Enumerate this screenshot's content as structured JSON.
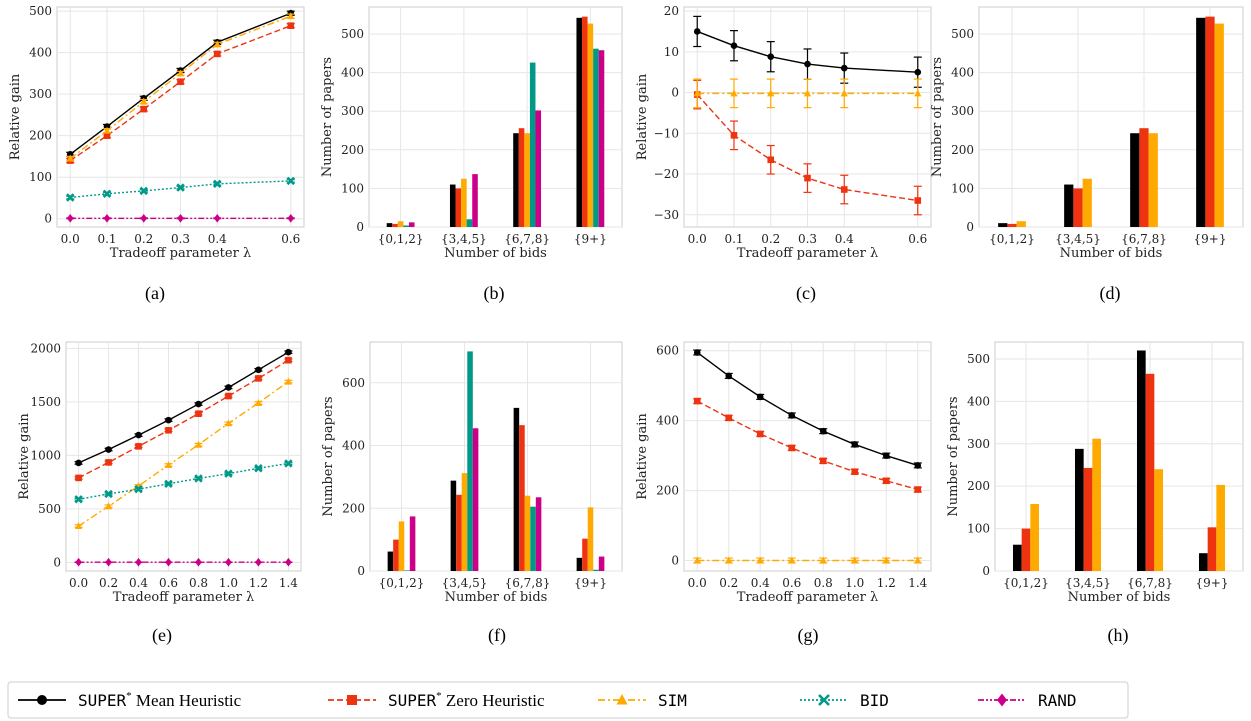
{
  "colors": {
    "SUPER* Mean Heuristic": "#000000",
    "SUPER* Zero Heuristic": "#ee3311",
    "SIM": "#ffaa00",
    "BID": "#009988",
    "RAND": "#cc0088"
  },
  "legend": [
    {
      "prefix": "SUPER",
      "sup": "*",
      "suffix": " Mean Heuristic",
      "series": "SUPER* Mean Heuristic",
      "style": "solid",
      "marker": "circle"
    },
    {
      "prefix": "SUPER",
      "sup": "*",
      "suffix": " Zero Heuristic",
      "series": "SUPER* Zero Heuristic",
      "style": "dashed",
      "marker": "square"
    },
    {
      "prefix": "SIM",
      "sup": "",
      "suffix": "",
      "series": "SIM",
      "style": "dashdot",
      "marker": "triangle"
    },
    {
      "prefix": "BID",
      "sup": "",
      "suffix": "",
      "series": "BID",
      "style": "dotted",
      "marker": "x"
    },
    {
      "prefix": "RAND",
      "sup": "",
      "suffix": "",
      "series": "RAND",
      "style": "dashdotdot",
      "marker": "diamond"
    }
  ],
  "chart_data": [
    {
      "panel": "(a)",
      "type": "line",
      "xlabel": "Tradeoff parameter λ",
      "ylabel": "Relative gain",
      "x": [
        0.0,
        0.1,
        0.2,
        0.3,
        0.4,
        0.6
      ],
      "xticks": [
        "0.0",
        "0.1",
        "0.2",
        "0.3",
        "0.4",
        "0.6"
      ],
      "ylim": [
        -20,
        510
      ],
      "yticks": [
        0,
        100,
        200,
        300,
        400,
        500
      ],
      "series": [
        {
          "name": "SUPER* Mean Heuristic",
          "values": [
            155,
            222,
            290,
            357,
            425,
            495
          ],
          "err": [
            5,
            5,
            5,
            5,
            5,
            5
          ]
        },
        {
          "name": "SUPER* Zero Heuristic",
          "values": [
            140,
            200,
            264,
            330,
            397,
            465
          ],
          "err": [
            5,
            5,
            5,
            5,
            5,
            5
          ]
        },
        {
          "name": "SIM",
          "values": [
            145,
            212,
            282,
            350,
            420,
            488
          ],
          "err": [
            5,
            5,
            5,
            5,
            5,
            5
          ]
        },
        {
          "name": "BID",
          "values": [
            51,
            60,
            67,
            75,
            84,
            91
          ],
          "err": [
            3,
            3,
            3,
            3,
            3,
            3
          ]
        },
        {
          "name": "RAND",
          "values": [
            1,
            1,
            1,
            1,
            1,
            1
          ],
          "err": [
            1,
            1,
            1,
            1,
            1,
            1
          ]
        }
      ]
    },
    {
      "panel": "(b)",
      "type": "bar",
      "xlabel": "Number of bids",
      "ylabel": "Number of papers",
      "categories": [
        "{0,1,2}",
        "{3,4,5}",
        "{6,7,8}",
        "{9+}"
      ],
      "ylim": [
        0,
        570
      ],
      "yticks": [
        0,
        100,
        200,
        300,
        400,
        500
      ],
      "series": [
        {
          "name": "SUPER* Mean Heuristic",
          "values": [
            10,
            110,
            243,
            542
          ]
        },
        {
          "name": "SUPER* Zero Heuristic",
          "values": [
            8,
            100,
            256,
            545
          ]
        },
        {
          "name": "SIM",
          "values": [
            15,
            125,
            243,
            527
          ]
        },
        {
          "name": "BID",
          "values": [
            4,
            20,
            426,
            462
          ]
        },
        {
          "name": "RAND",
          "values": [
            12,
            137,
            302,
            458
          ]
        }
      ]
    },
    {
      "panel": "(c)",
      "type": "line",
      "xlabel": "Tradeoff parameter λ",
      "ylabel": "Relative gain",
      "x": [
        0.0,
        0.1,
        0.2,
        0.3,
        0.4,
        0.6
      ],
      "xticks": [
        "0.0",
        "0.1",
        "0.2",
        "0.3",
        "0.4",
        "0.6"
      ],
      "ylim": [
        -33,
        21
      ],
      "yticks": [
        -30,
        -20,
        -10,
        0,
        10,
        20
      ],
      "series": [
        {
          "name": "SUPER* Mean Heuristic",
          "values": [
            15,
            11.5,
            8.8,
            7,
            6,
            5
          ],
          "err": [
            3.7,
            3.7,
            3.7,
            3.7,
            3.7,
            3.7
          ]
        },
        {
          "name": "SUPER* Zero Heuristic",
          "values": [
            -0.5,
            -10.5,
            -16.5,
            -21,
            -23.8,
            -26.5
          ],
          "err": [
            3.5,
            3.5,
            3.5,
            3.5,
            3.5,
            3.5
          ]
        },
        {
          "name": "SIM",
          "values": [
            -0.2,
            -0.2,
            -0.2,
            -0.2,
            -0.2,
            -0.2
          ],
          "err": [
            3.5,
            3.5,
            3.5,
            3.5,
            3.5,
            3.5
          ]
        }
      ]
    },
    {
      "panel": "(d)",
      "type": "bar",
      "xlabel": "Number of bids",
      "ylabel": "Number of papers",
      "categories": [
        "{0,1,2}",
        "{3,4,5}",
        "{6,7,8}",
        "{9+}"
      ],
      "ylim": [
        0,
        570
      ],
      "yticks": [
        0,
        100,
        200,
        300,
        400,
        500
      ],
      "series": [
        {
          "name": "SUPER* Mean Heuristic",
          "values": [
            10,
            110,
            243,
            542
          ]
        },
        {
          "name": "SUPER* Zero Heuristic",
          "values": [
            8,
            100,
            256,
            545
          ]
        },
        {
          "name": "SIM",
          "values": [
            15,
            125,
            243,
            527
          ]
        }
      ]
    },
    {
      "panel": "(e)",
      "type": "line",
      "xlabel": "Tradeoff parameter λ",
      "ylabel": "Relative gain",
      "x": [
        0.0,
        0.2,
        0.4,
        0.6,
        0.8,
        1.0,
        1.2,
        1.4
      ],
      "xticks": [
        "0.0",
        "0.2",
        "0.4",
        "0.6",
        "0.8",
        "1.0",
        "1.2",
        "1.4"
      ],
      "ylim": [
        -80,
        2060
      ],
      "yticks": [
        0,
        500,
        1000,
        1500,
        2000
      ],
      "series": [
        {
          "name": "SUPER* Mean Heuristic",
          "values": [
            930,
            1055,
            1190,
            1330,
            1480,
            1635,
            1800,
            1965
          ],
          "err": [
            12,
            12,
            12,
            12,
            12,
            12,
            12,
            12
          ]
        },
        {
          "name": "SUPER* Zero Heuristic",
          "values": [
            790,
            935,
            1085,
            1235,
            1390,
            1555,
            1720,
            1890
          ],
          "err": [
            12,
            12,
            12,
            12,
            12,
            12,
            12,
            12
          ]
        },
        {
          "name": "SIM",
          "values": [
            340,
            525,
            715,
            910,
            1100,
            1300,
            1490,
            1690
          ],
          "err": [
            12,
            12,
            12,
            12,
            12,
            12,
            12,
            12
          ]
        },
        {
          "name": "BID",
          "values": [
            590,
            640,
            685,
            735,
            785,
            830,
            880,
            925
          ],
          "err": [
            8,
            8,
            8,
            8,
            8,
            8,
            8,
            8
          ]
        },
        {
          "name": "RAND",
          "values": [
            2,
            2,
            2,
            2,
            2,
            2,
            2,
            2
          ],
          "err": [
            2,
            2,
            2,
            2,
            2,
            2,
            2,
            2
          ]
        }
      ]
    },
    {
      "panel": "(f)",
      "type": "bar",
      "xlabel": "Number of bids",
      "ylabel": "Number of papers",
      "categories": [
        "{0,1,2}",
        "{3,4,5}",
        "{6,7,8}",
        "{9+}"
      ],
      "ylim": [
        0,
        730
      ],
      "yticks": [
        0,
        200,
        400,
        600
      ],
      "series": [
        {
          "name": "SUPER* Mean Heuristic",
          "values": [
            62,
            288,
            520,
            42
          ]
        },
        {
          "name": "SUPER* Zero Heuristic",
          "values": [
            100,
            243,
            465,
            103
          ]
        },
        {
          "name": "SIM",
          "values": [
            158,
            312,
            240,
            203
          ]
        },
        {
          "name": "BID",
          "values": [
            2,
            700,
            205,
            4
          ]
        },
        {
          "name": "RAND",
          "values": [
            174,
            455,
            235,
            46
          ]
        }
      ]
    },
    {
      "panel": "(g)",
      "type": "line",
      "xlabel": "Tradeoff parameter λ",
      "ylabel": "Relative gain",
      "x": [
        0.0,
        0.2,
        0.4,
        0.6,
        0.8,
        1.0,
        1.2,
        1.4
      ],
      "xticks": [
        "0.0",
        "0.2",
        "0.4",
        "0.6",
        "0.8",
        "1.0",
        "1.2",
        "1.4"
      ],
      "ylim": [
        -30,
        625
      ],
      "yticks": [
        0,
        200,
        400,
        600
      ],
      "series": [
        {
          "name": "SUPER* Mean Heuristic",
          "values": [
            595,
            528,
            468,
            415,
            370,
            332,
            300,
            272
          ],
          "err": [
            7,
            7,
            7,
            7,
            7,
            7,
            7,
            7
          ]
        },
        {
          "name": "SUPER* Zero Heuristic",
          "values": [
            456,
            408,
            362,
            322,
            285,
            254,
            228,
            203
          ],
          "err": [
            7,
            7,
            7,
            7,
            7,
            7,
            7,
            7
          ]
        },
        {
          "name": "SIM",
          "values": [
            0,
            0,
            0,
            0,
            0,
            0,
            0,
            0
          ],
          "err": [
            7,
            7,
            7,
            7,
            7,
            7,
            7,
            7
          ]
        }
      ]
    },
    {
      "panel": "(h)",
      "type": "bar",
      "xlabel": "Number of bids",
      "ylabel": "Number of papers",
      "categories": [
        "{0,1,2}",
        "{3,4,5}",
        "{6,7,8}",
        "{9+}"
      ],
      "ylim": [
        0,
        540
      ],
      "yticks": [
        0,
        100,
        200,
        300,
        400,
        500
      ],
      "series": [
        {
          "name": "SUPER* Mean Heuristic",
          "values": [
            62,
            288,
            520,
            42
          ]
        },
        {
          "name": "SUPER* Zero Heuristic",
          "values": [
            100,
            243,
            465,
            103
          ]
        },
        {
          "name": "SIM",
          "values": [
            158,
            312,
            240,
            203
          ]
        }
      ]
    }
  ]
}
